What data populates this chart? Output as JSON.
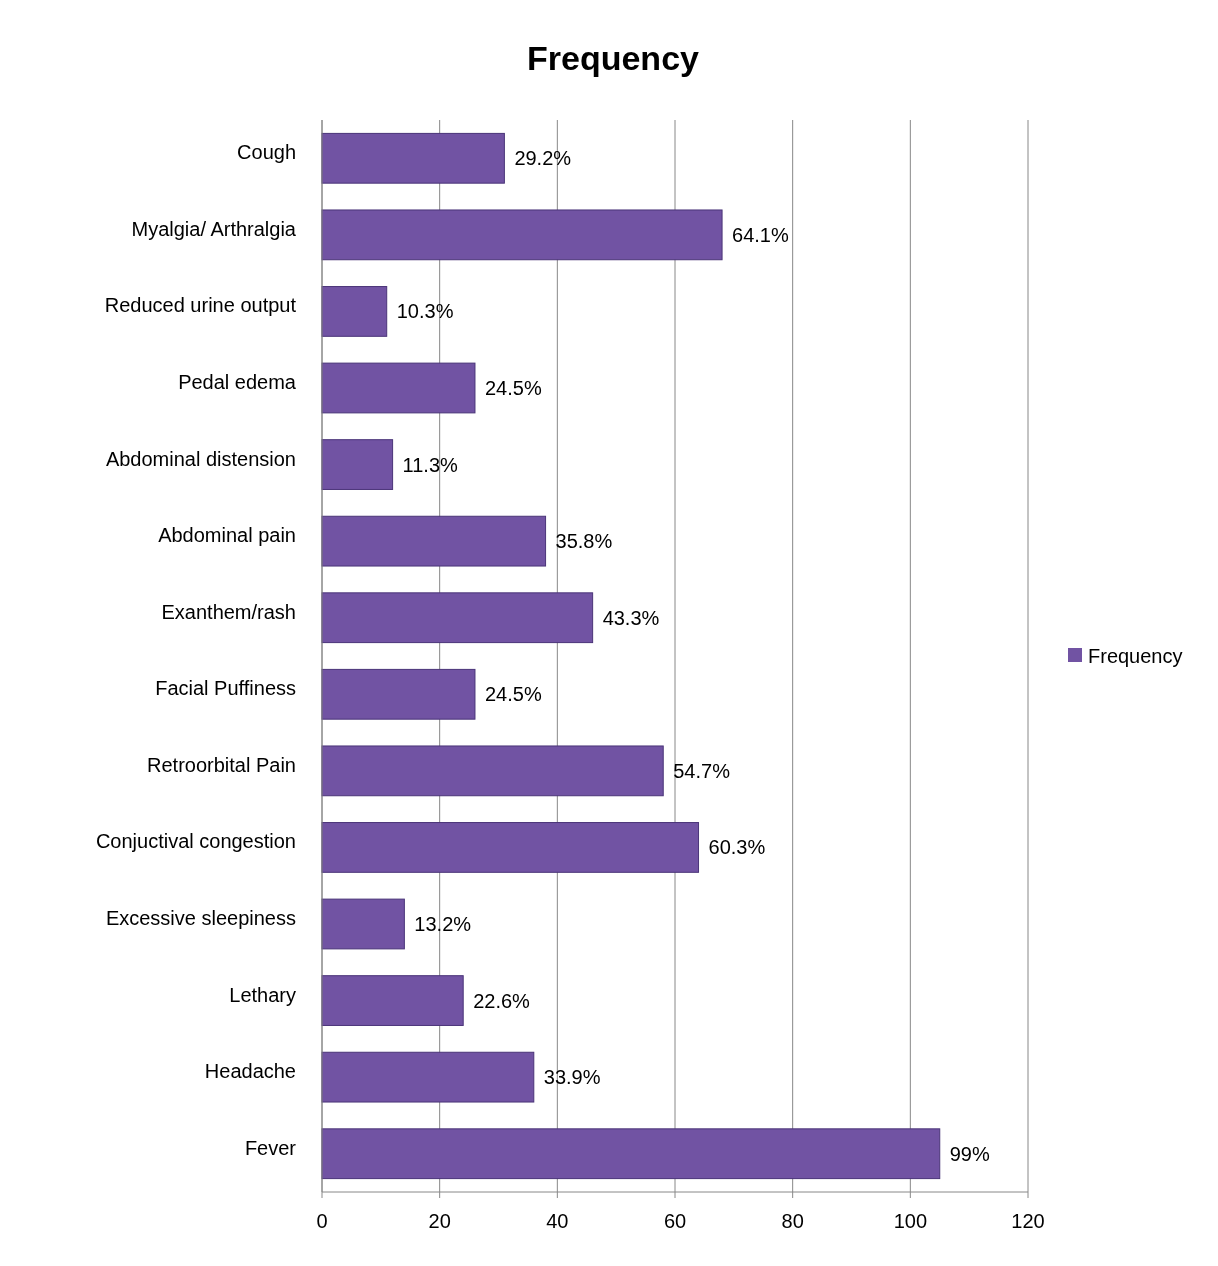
{
  "chart_data": {
    "type": "bar",
    "orientation": "horizontal",
    "title": "Frequency",
    "categories": [
      "Cough",
      "Myalgia/ Arthralgia",
      "Reduced urine output",
      "Pedal edema",
      "Abdominal distension",
      "Abdominal pain",
      "Exanthem/rash",
      "Facial Puffiness",
      "Retroorbital Pain",
      "Conjuctival congestion",
      "Excessive sleepiness",
      "Lethary",
      "Headache",
      "Fever"
    ],
    "series": [
      {
        "name": "Frequency",
        "color": "#7153a3",
        "values": [
          31,
          68,
          11,
          26,
          12,
          38,
          46,
          26,
          58,
          64,
          14,
          24,
          36,
          105
        ]
      }
    ],
    "annotations": [
      {
        "text": "29.2%",
        "x": 31,
        "y": "Cough"
      },
      {
        "text": "64.1%",
        "x": 68,
        "y": "Myalgia/ Arthralgia"
      },
      {
        "text": "10.3%",
        "x": 11,
        "y": "Reduced urine output"
      },
      {
        "text": "24.5%",
        "x": 26,
        "y": "Pedal edema"
      },
      {
        "text": "11.3%",
        "x": 12,
        "y": "Abdominal distension"
      },
      {
        "text": "35.8%",
        "x": 38,
        "y": "Abdominal pain"
      },
      {
        "text": "43.3%",
        "x": 46,
        "y": "Exanthem/rash"
      },
      {
        "text": "24.5%",
        "x": 26,
        "y": "Facial Puffiness"
      },
      {
        "text": "54.7%",
        "x": 58,
        "y": "Retroorbital Pain"
      },
      {
        "text": "60.3%",
        "x": 64,
        "y": "Conjuctival congestion"
      },
      {
        "text": "13.2%",
        "x": 14,
        "y": "Excessive sleepiness"
      },
      {
        "text": "22.6%",
        "x": 24,
        "y": "Lethary"
      },
      {
        "text": "33.9%",
        "x": 36,
        "y": "Headache"
      },
      {
        "text": "99%",
        "x": 105,
        "y": "Fever"
      }
    ],
    "xlim": [
      0,
      120
    ],
    "xticks": [
      0,
      20,
      40,
      60,
      80,
      100,
      120
    ],
    "grid": "x",
    "legend": "right"
  }
}
